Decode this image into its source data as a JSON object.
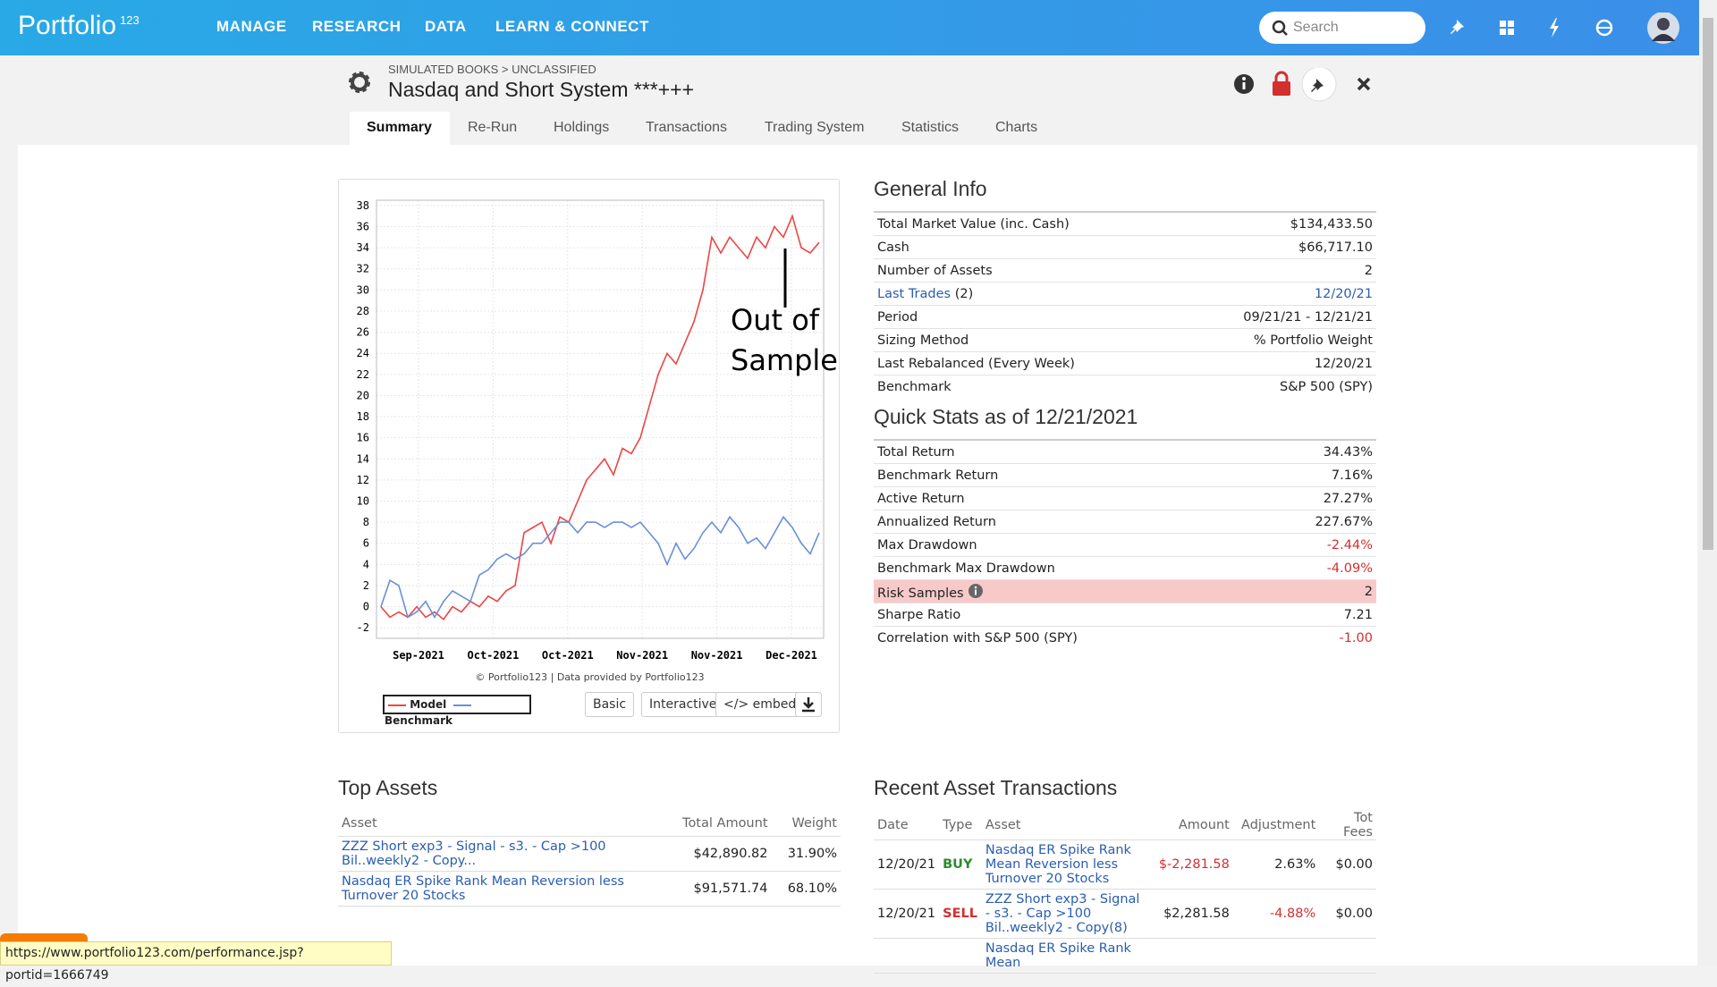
{
  "nav": {
    "logo": "Portfolio",
    "logo_suffix": "123",
    "menu": [
      "MANAGE",
      "RESEARCH",
      "DATA",
      "LEARN & CONNECT"
    ],
    "search_placeholder": "Search"
  },
  "header": {
    "breadcrumb": "SIMULATED BOOKS > UNCLASSIFIED",
    "title": "Nasdaq and Short System ***+++"
  },
  "tabs": [
    "Summary",
    "Re-Run",
    "Holdings",
    "Transactions",
    "Trading System",
    "Statistics",
    "Charts"
  ],
  "chart": {
    "type": "line",
    "x_labels": [
      "Sep-2021",
      "Oct-2021",
      "Oct-2021",
      "Nov-2021",
      "Nov-2021",
      "Dec-2021"
    ],
    "ylim": [
      -3,
      38.5
    ],
    "yticks": [
      -2,
      0,
      2,
      4,
      6,
      8,
      10,
      12,
      14,
      16,
      18,
      20,
      22,
      24,
      26,
      28,
      30,
      32,
      34,
      36,
      38
    ],
    "series": [
      {
        "name": "Model",
        "color": "#ee4444",
        "values": [
          0,
          -1,
          -0.5,
          -1,
          0,
          -1,
          -0.5,
          -1.2,
          0,
          -0.5,
          0.5,
          0,
          1,
          0.5,
          1.5,
          2,
          7,
          7.5,
          8,
          6,
          8.5,
          8,
          10,
          12,
          13,
          14,
          12.5,
          15,
          14.5,
          16,
          19,
          22,
          24,
          23,
          25,
          27,
          30,
          35,
          33.5,
          35,
          34,
          33,
          35,
          34,
          36,
          35,
          37,
          34,
          33.5,
          34.5
        ]
      },
      {
        "name": "Benchmark",
        "color": "#6a8fd8",
        "values": [
          0,
          2.5,
          2,
          -1,
          -0.5,
          0.5,
          -1,
          0.5,
          1.5,
          1,
          0.5,
          3,
          3.5,
          4.5,
          5,
          4.5,
          5,
          6,
          6,
          7,
          8,
          8,
          7,
          8,
          8,
          7.5,
          8,
          8,
          7.5,
          8,
          7,
          6,
          4,
          6,
          4.5,
          5.5,
          7,
          8,
          7,
          8.5,
          7.5,
          6,
          6.5,
          5.5,
          7,
          8.5,
          7.5,
          6,
          5,
          7
        ]
      }
    ],
    "annotation": "Out of Sample",
    "credit": "© Portfolio123 | Data provided by Portfolio123",
    "buttons": [
      "Basic",
      "Interactive",
      "</> embed"
    ]
  },
  "general_info": {
    "title": "General Info",
    "rows": [
      {
        "label": "Total Market Value (inc. Cash)",
        "value": "$134,433.50"
      },
      {
        "label": "Cash",
        "value": "$66,717.10"
      },
      {
        "label": "Number of Assets",
        "value": "2"
      },
      {
        "label": "Last Trades",
        "note": "(2)",
        "value": "12/20/21"
      },
      {
        "label": "Period",
        "value": "09/21/21 - 12/21/21"
      },
      {
        "label": "Sizing Method",
        "value": "% Portfolio Weight"
      },
      {
        "label": "Last Rebalanced (Every Week)",
        "value": "12/20/21"
      },
      {
        "label": "Benchmark",
        "value": "S&P 500 (SPY)"
      }
    ]
  },
  "quick_stats": {
    "title": "Quick Stats as of 12/21/2021",
    "rows": [
      {
        "label": "Total Return",
        "value": "34.43%"
      },
      {
        "label": "Benchmark Return",
        "value": "7.16%"
      },
      {
        "label": "Active Return",
        "value": "27.27%"
      },
      {
        "label": "Annualized Return",
        "value": "227.67%"
      },
      {
        "label": "Max Drawdown",
        "value": "-2.44%"
      },
      {
        "label": "Benchmark Max Drawdown",
        "value": "-4.09%"
      },
      {
        "label": "Risk Samples",
        "value": "2"
      },
      {
        "label": "Sharpe Ratio",
        "value": "7.21"
      },
      {
        "label": "Correlation with S&P 500 (SPY)",
        "value": "-1.00"
      }
    ]
  },
  "top_assets": {
    "title": "Top Assets",
    "columns": [
      "Asset",
      "Total Amount",
      "Weight"
    ],
    "rows": [
      [
        "ZZZ Short exp3 - Signal - s3. - Cap >100 Bil..weekly2 - Copy...",
        "$42,890.82",
        "31.90%"
      ],
      [
        "Nasdaq ER Spike Rank Mean Reversion less Turnover 20 Stocks",
        "$91,571.74",
        "68.10%"
      ]
    ]
  },
  "recent_transactions": {
    "title": "Recent Asset Transactions",
    "columns": [
      "Date",
      "Type",
      "Asset",
      "Amount",
      "Adjustment",
      "Tot Fees"
    ],
    "rows": [
      [
        "12/20/21",
        "BUY",
        "Nasdaq ER Spike Rank Mean Reversion less Turnover 20 Stocks",
        "$-2,281.58",
        "2.63%",
        "$0.00"
      ],
      [
        "12/20/21",
        "SELL",
        "ZZZ Short exp3 - Signal - s3. - Cap >100 Bil..weekly2 - Copy(8)",
        "$2,281.58",
        "-4.88%",
        "$0.00"
      ],
      [
        "",
        "",
        "Nasdaq ER Spike Rank Mean",
        "",
        "",
        ""
      ]
    ]
  },
  "status_url": "https://www.portfolio123.com/performance.jsp?portid=1666749"
}
